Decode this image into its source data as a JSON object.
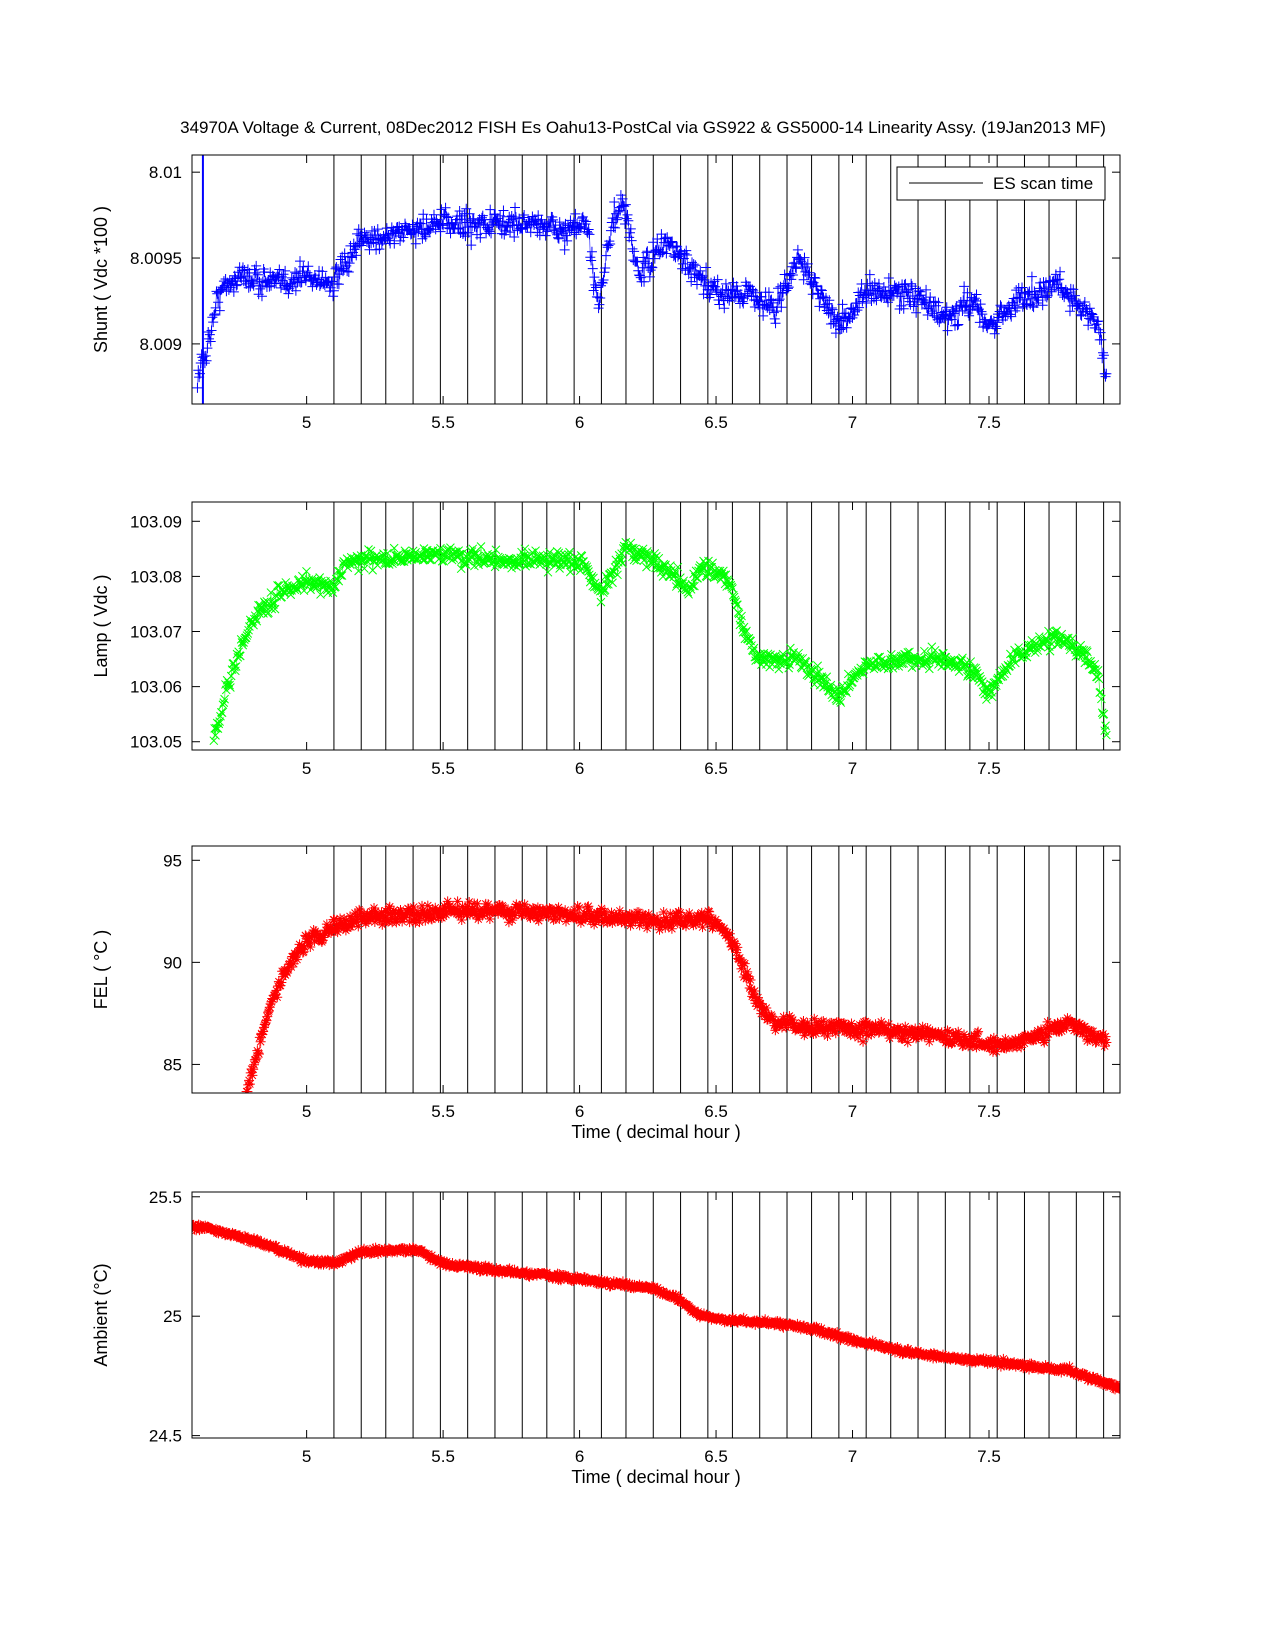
{
  "figure_title": "34970A  Voltage & Current,  08Dec2012  FISH Es  Oahu13-PostCal via GS922 & GS5000-14 Linearity Assy.  (19Jan2013 MF)",
  "legend": {
    "line_label": "ES scan time",
    "location": "top-right"
  },
  "colors": {
    "shunt": "#0000ff",
    "lamp": "#00ff00",
    "fel": "#ff0000",
    "ambient": "#ff0000",
    "scan_lines": "#000000"
  },
  "chart_data": [
    {
      "id": "shunt",
      "type": "scatter",
      "marker": "+",
      "ylabel": "Shunt ( Vdc *100 )",
      "xlabel": "",
      "xlim": [
        4.58,
        7.98
      ],
      "ylim": [
        8.00865,
        8.0101
      ],
      "xticks": [
        5,
        5.5,
        6,
        6.5,
        7,
        7.5
      ],
      "xtick_labels": [
        "5",
        "5.5",
        "6",
        "6.5",
        "7",
        "7.5"
      ],
      "yticks": [
        8.009,
        8.0095,
        8.01
      ],
      "ytick_labels": [
        "8.009",
        "8.0095",
        "8.01"
      ],
      "scan_times": [
        4.62
      ],
      "noise": 0.00011,
      "trend": [
        [
          4.6,
          8.0088
        ],
        [
          4.63,
          8.00895
        ],
        [
          4.68,
          8.0093
        ],
        [
          4.75,
          8.0094
        ],
        [
          4.9,
          8.00935
        ],
        [
          5.0,
          8.0094
        ],
        [
          5.1,
          8.00935
        ],
        [
          5.2,
          8.0096
        ],
        [
          5.35,
          8.00965
        ],
        [
          5.5,
          8.0097
        ],
        [
          5.6,
          8.0097
        ],
        [
          5.75,
          8.0097
        ],
        [
          5.85,
          8.0097
        ],
        [
          5.95,
          8.00965
        ],
        [
          6.02,
          8.0097
        ],
        [
          6.07,
          8.00925
        ],
        [
          6.12,
          8.0097
        ],
        [
          6.16,
          8.0098
        ],
        [
          6.22,
          8.0094
        ],
        [
          6.32,
          8.0096
        ],
        [
          6.45,
          8.00935
        ],
        [
          6.5,
          8.0093
        ],
        [
          6.62,
          8.0093
        ],
        [
          6.72,
          8.0092
        ],
        [
          6.8,
          8.0095
        ],
        [
          6.88,
          8.0093
        ],
        [
          6.95,
          8.0091
        ],
        [
          7.05,
          8.0093
        ],
        [
          7.2,
          8.0093
        ],
        [
          7.35,
          8.00915
        ],
        [
          7.45,
          8.00925
        ],
        [
          7.5,
          8.0091
        ],
        [
          7.6,
          8.00925
        ],
        [
          7.75,
          8.00935
        ],
        [
          7.85,
          8.0092
        ],
        [
          7.9,
          8.0091
        ],
        [
          7.93,
          8.0088
        ]
      ]
    },
    {
      "id": "lamp",
      "type": "scatter",
      "marker": "x",
      "ylabel": "Lamp ( Vdc )",
      "xlabel": "",
      "xlim": [
        4.58,
        7.98
      ],
      "ylim": [
        103.0485,
        103.0935
      ],
      "xticks": [
        5,
        5.5,
        6,
        6.5,
        7,
        7.5
      ],
      "xtick_labels": [
        "5",
        "5.5",
        "6",
        "6.5",
        "7",
        "7.5"
      ],
      "yticks": [
        103.05,
        103.06,
        103.07,
        103.08,
        103.09
      ],
      "ytick_labels": [
        "103.05",
        "103.06",
        "103.07",
        "103.08",
        "103.09"
      ],
      "scan_times": [],
      "noise": 0.0022,
      "trend": [
        [
          4.66,
          103.051
        ],
        [
          4.7,
          103.058
        ],
        [
          4.75,
          103.066
        ],
        [
          4.8,
          103.072
        ],
        [
          4.9,
          103.077
        ],
        [
          5.0,
          103.079
        ],
        [
          5.1,
          103.078
        ],
        [
          5.15,
          103.083
        ],
        [
          5.3,
          103.083
        ],
        [
          5.5,
          103.084
        ],
        [
          5.7,
          103.083
        ],
        [
          5.85,
          103.083
        ],
        [
          6.0,
          103.083
        ],
        [
          6.08,
          103.077
        ],
        [
          6.17,
          103.085
        ],
        [
          6.3,
          103.082
        ],
        [
          6.4,
          103.078
        ],
        [
          6.45,
          103.082
        ],
        [
          6.55,
          103.079
        ],
        [
          6.6,
          103.07
        ],
        [
          6.65,
          103.065
        ],
        [
          6.8,
          103.065
        ],
        [
          6.9,
          103.061
        ],
        [
          6.95,
          103.058
        ],
        [
          7.05,
          103.064
        ],
        [
          7.3,
          103.065
        ],
        [
          7.45,
          103.063
        ],
        [
          7.5,
          103.059
        ],
        [
          7.6,
          103.066
        ],
        [
          7.75,
          103.069
        ],
        [
          7.85,
          103.066
        ],
        [
          7.9,
          103.062
        ],
        [
          7.93,
          103.051
        ]
      ]
    },
    {
      "id": "fel",
      "type": "scatter",
      "marker": "*",
      "ylabel": "FEL ( °C )",
      "xlabel": "Time  ( decimal hour )",
      "xlim": [
        4.58,
        7.98
      ],
      "ylim": [
        83.6,
        95.7
      ],
      "xticks": [
        5,
        5.5,
        6,
        6.5,
        7,
        7.5
      ],
      "xtick_labels": [
        "5",
        "5.5",
        "6",
        "6.5",
        "7",
        "7.5"
      ],
      "yticks": [
        85,
        90,
        95
      ],
      "ytick_labels": [
        "85",
        "90",
        "95"
      ],
      "scan_times": [],
      "noise": 0.55,
      "trend": [
        [
          4.78,
          83.8
        ],
        [
          4.82,
          85.5
        ],
        [
          4.87,
          88.0
        ],
        [
          4.92,
          89.5
        ],
        [
          5.0,
          91.0
        ],
        [
          5.1,
          91.8
        ],
        [
          5.2,
          92.2
        ],
        [
          5.4,
          92.3
        ],
        [
          5.6,
          92.6
        ],
        [
          5.8,
          92.5
        ],
        [
          6.0,
          92.3
        ],
        [
          6.3,
          92.0
        ],
        [
          6.5,
          92.1
        ],
        [
          6.58,
          90.5
        ],
        [
          6.65,
          88.0
        ],
        [
          6.72,
          87.0
        ],
        [
          6.9,
          86.8
        ],
        [
          7.1,
          86.7
        ],
        [
          7.3,
          86.4
        ],
        [
          7.5,
          86.0
        ],
        [
          7.6,
          86.0
        ],
        [
          7.7,
          86.6
        ],
        [
          7.8,
          87.0
        ],
        [
          7.93,
          86.2
        ]
      ]
    },
    {
      "id": "ambient",
      "type": "scatter",
      "marker": "*",
      "ylabel": "Ambient  (°C)",
      "xlabel": "Time  ( decimal hour )",
      "xlim": [
        4.58,
        7.98
      ],
      "ylim": [
        24.49,
        25.52
      ],
      "xticks": [
        5,
        5.5,
        6,
        6.5,
        7,
        7.5
      ],
      "xtick_labels": [
        "5",
        "5.5",
        "6",
        "6.5",
        "7",
        "7.5"
      ],
      "yticks": [
        24.5,
        25,
        25.5
      ],
      "ytick_labels": [
        "24.5",
        "25",
        "25.5"
      ],
      "scan_times": [],
      "noise": 0.018,
      "trend": [
        [
          4.58,
          25.38
        ],
        [
          4.7,
          25.35
        ],
        [
          4.8,
          25.32
        ],
        [
          4.9,
          25.28
        ],
        [
          5.0,
          25.23
        ],
        [
          5.1,
          25.22
        ],
        [
          5.2,
          25.27
        ],
        [
          5.4,
          25.28
        ],
        [
          5.5,
          25.22
        ],
        [
          5.7,
          25.19
        ],
        [
          5.9,
          25.17
        ],
        [
          6.1,
          25.14
        ],
        [
          6.25,
          25.12
        ],
        [
          6.35,
          25.08
        ],
        [
          6.45,
          25.0
        ],
        [
          6.6,
          24.98
        ],
        [
          6.8,
          24.96
        ],
        [
          7.0,
          24.9
        ],
        [
          7.2,
          24.85
        ],
        [
          7.4,
          24.82
        ],
        [
          7.6,
          24.8
        ],
        [
          7.8,
          24.77
        ],
        [
          7.98,
          24.7
        ]
      ]
    }
  ]
}
